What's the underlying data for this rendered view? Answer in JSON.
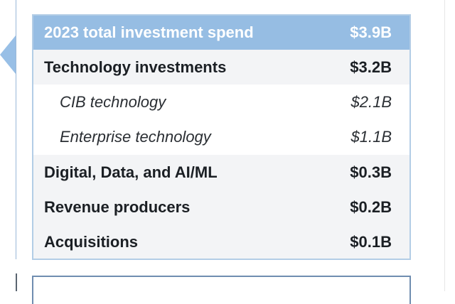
{
  "investment_table": {
    "header": {
      "label": "2023 total investment spend",
      "value": "$3.9B"
    },
    "rows": [
      {
        "label": "Technology investments",
        "value": "$3.2B"
      },
      {
        "label": "CIB technology",
        "value": "$2.1B"
      },
      {
        "label": "Enterprise technology",
        "value": "$1.1B"
      },
      {
        "label": "Digital, Data, and AI/ML",
        "value": "$0.3B"
      },
      {
        "label": "Revenue producers",
        "value": "$0.2B"
      },
      {
        "label": "Acquisitions",
        "value": "$0.1B"
      }
    ]
  },
  "colors": {
    "header_bg": "#96bde3",
    "border": "#b3cde6",
    "shaded_row": "#f3f4f6",
    "pointer": "#98bfe6"
  }
}
